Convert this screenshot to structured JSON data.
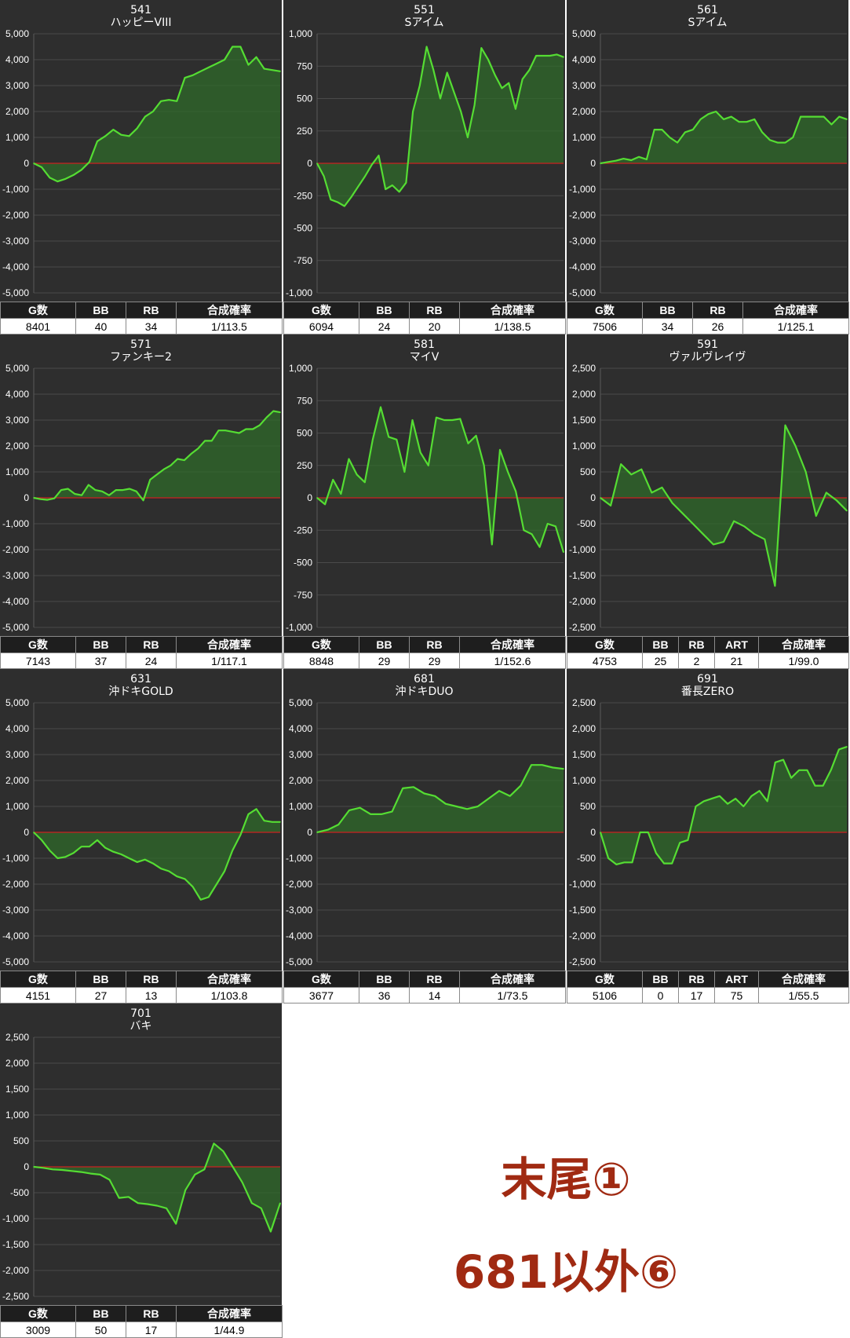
{
  "notes": {
    "line1": "末尾①",
    "line2": "681以外⑥"
  },
  "colors": {
    "panel_bg": "#2e2e2e",
    "line": "#55dd33",
    "fill": "#2f6a2a",
    "zero_line": "#cc2222",
    "note_text": "#a02a12"
  },
  "chart_data": [
    {
      "type": "area",
      "machine_no": "541",
      "title": "ハッピーVIII",
      "ylim": [
        -5000,
        5000
      ],
      "yticks": [
        "5,000",
        "4,000",
        "3,000",
        "2,000",
        "1,000",
        "0",
        "-1,000",
        "-2,000",
        "-3,000",
        "-4,000",
        "-5,000"
      ],
      "values": [
        0,
        -150,
        -550,
        -700,
        -600,
        -450,
        -250,
        50,
        850,
        1050,
        1300,
        1100,
        1050,
        1350,
        1800,
        2000,
        2400,
        2450,
        2400,
        3300,
        3400,
        3550,
        3700,
        3850,
        4000,
        4500,
        4500,
        3800,
        4100,
        3650,
        3600,
        3550
      ],
      "stats": {
        "headers": [
          "G数",
          "BB",
          "RB",
          "合成確率"
        ],
        "values": [
          "8401",
          "40",
          "34",
          "1/113.5"
        ]
      }
    },
    {
      "type": "area",
      "machine_no": "551",
      "title": "Sアイム",
      "ylim": [
        -1000,
        1000
      ],
      "yticks": [
        "1,000",
        "750",
        "500",
        "250",
        "0",
        "-250",
        "-500",
        "-750",
        "-1,000"
      ],
      "values": [
        0,
        -100,
        -280,
        -300,
        -330,
        -260,
        -180,
        -100,
        -10,
        60,
        -200,
        -170,
        -220,
        -150,
        400,
        600,
        900,
        720,
        500,
        700,
        550,
        400,
        200,
        450,
        890,
        800,
        680,
        580,
        620,
        420,
        650,
        720,
        830,
        830,
        830,
        840,
        820
      ],
      "stats": {
        "headers": [
          "G数",
          "BB",
          "RB",
          "合成確率"
        ],
        "values": [
          "6094",
          "24",
          "20",
          "1/138.5"
        ]
      }
    },
    {
      "type": "area",
      "machine_no": "561",
      "title": "Sアイム",
      "ylim": [
        -5000,
        5000
      ],
      "yticks": [
        "5,000",
        "4,000",
        "3,000",
        "2,000",
        "1,000",
        "0",
        "-1,000",
        "-2,000",
        "-3,000",
        "-4,000",
        "-5,000"
      ],
      "values": [
        0,
        50,
        100,
        180,
        120,
        250,
        150,
        1300,
        1300,
        1000,
        800,
        1200,
        1300,
        1700,
        1900,
        2000,
        1700,
        1800,
        1600,
        1600,
        1700,
        1200,
        900,
        800,
        800,
        1000,
        1800,
        1800,
        1800,
        1800,
        1500,
        1800,
        1700
      ],
      "stats": {
        "headers": [
          "G数",
          "BB",
          "RB",
          "合成確率"
        ],
        "values": [
          "7506",
          "34",
          "26",
          "1/125.1"
        ]
      }
    },
    {
      "type": "area",
      "machine_no": "571",
      "title": "ファンキー2",
      "ylim": [
        -5000,
        5000
      ],
      "yticks": [
        "5,000",
        "4,000",
        "3,000",
        "2,000",
        "1,000",
        "0",
        "-1,000",
        "-2,000",
        "-3,000",
        "-4,000",
        "-5,000"
      ],
      "values": [
        0,
        -50,
        -80,
        -20,
        300,
        350,
        150,
        100,
        500,
        300,
        250,
        100,
        300,
        300,
        350,
        250,
        -100,
        700,
        900,
        1100,
        1250,
        1500,
        1450,
        1700,
        1900,
        2200,
        2200,
        2600,
        2600,
        2550,
        2500,
        2650,
        2650,
        2800,
        3100,
        3350,
        3300
      ],
      "stats": {
        "headers": [
          "G数",
          "BB",
          "RB",
          "合成確率"
        ],
        "values": [
          "7143",
          "37",
          "24",
          "1/117.1"
        ]
      }
    },
    {
      "type": "area",
      "machine_no": "581",
      "title": "マイV",
      "ylim": [
        -1000,
        1000
      ],
      "yticks": [
        "1,000",
        "750",
        "500",
        "250",
        "0",
        "-250",
        "-500",
        "-750",
        "-1,000"
      ],
      "values": [
        0,
        -50,
        140,
        30,
        300,
        180,
        120,
        450,
        700,
        470,
        450,
        200,
        600,
        350,
        250,
        620,
        600,
        600,
        610,
        420,
        480,
        250,
        -360,
        370,
        200,
        50,
        -250,
        -280,
        -380,
        -200,
        -220,
        -420
      ],
      "stats": {
        "headers": [
          "G数",
          "BB",
          "RB",
          "合成確率"
        ],
        "values": [
          "8848",
          "29",
          "29",
          "1/152.6"
        ]
      }
    },
    {
      "type": "area",
      "machine_no": "591",
      "title": "ヴァルヴレイヴ",
      "ylim": [
        -2500,
        2500
      ],
      "yticks": [
        "2,500",
        "2,000",
        "1,500",
        "1,000",
        "500",
        "0",
        "-500",
        "-1,000",
        "-1,500",
        "-2,000",
        "-2,500"
      ],
      "values": [
        0,
        -150,
        650,
        450,
        550,
        100,
        200,
        -100,
        -300,
        -500,
        -700,
        -900,
        -850,
        -450,
        -550,
        -700,
        -800,
        -1700,
        1400,
        1000,
        500,
        -350,
        100,
        -50,
        -250
      ],
      "stats": {
        "headers": [
          "G数",
          "BB",
          "RB",
          "ART",
          "合成確率"
        ],
        "values": [
          "4753",
          "25",
          "2",
          "21",
          "1/99.0"
        ]
      }
    },
    {
      "type": "area",
      "machine_no": "631",
      "title": "沖ドキGOLD",
      "ylim": [
        -5000,
        5000
      ],
      "yticks": [
        "5,000",
        "4,000",
        "3,000",
        "2,000",
        "1,000",
        "0",
        "-1,000",
        "-2,000",
        "-3,000",
        "-4,000",
        "-5,000"
      ],
      "values": [
        0,
        -300,
        -700,
        -1000,
        -950,
        -800,
        -550,
        -550,
        -300,
        -600,
        -750,
        -850,
        -1000,
        -1150,
        -1050,
        -1200,
        -1400,
        -1500,
        -1700,
        -1800,
        -2100,
        -2600,
        -2500,
        -2000,
        -1500,
        -700,
        -100,
        700,
        900,
        450,
        400,
        400
      ],
      "stats": {
        "headers": [
          "G数",
          "BB",
          "RB",
          "合成確率"
        ],
        "values": [
          "4151",
          "27",
          "13",
          "1/103.8"
        ]
      }
    },
    {
      "type": "area",
      "machine_no": "681",
      "title": "沖ドキDUO",
      "ylim": [
        -5000,
        5000
      ],
      "yticks": [
        "5,000",
        "4,000",
        "3,000",
        "2,000",
        "1,000",
        "0",
        "-1,000",
        "-2,000",
        "-3,000",
        "-4,000",
        "-5,000"
      ],
      "values": [
        0,
        100,
        300,
        850,
        950,
        700,
        700,
        800,
        1700,
        1750,
        1500,
        1400,
        1100,
        1000,
        900,
        1000,
        1300,
        1600,
        1400,
        1800,
        2600,
        2600,
        2500,
        2450
      ],
      "stats": {
        "headers": [
          "G数",
          "BB",
          "RB",
          "合成確率"
        ],
        "values": [
          "3677",
          "36",
          "14",
          "1/73.5"
        ]
      }
    },
    {
      "type": "area",
      "machine_no": "691",
      "title": "番長ZERO",
      "ylim": [
        -2500,
        2500
      ],
      "yticks": [
        "2,500",
        "2,000",
        "1,500",
        "1,000",
        "500",
        "0",
        "-500",
        "-1,000",
        "-1,500",
        "-2,000",
        "-2,500"
      ],
      "values": [
        0,
        -500,
        -620,
        -580,
        -580,
        0,
        0,
        -400,
        -600,
        -600,
        -200,
        -150,
        500,
        600,
        650,
        700,
        550,
        650,
        500,
        700,
        800,
        600,
        1350,
        1400,
        1050,
        1200,
        1200,
        900,
        900,
        1200,
        1600,
        1650
      ],
      "stats": {
        "headers": [
          "G数",
          "BB",
          "RB",
          "ART",
          "合成確率"
        ],
        "values": [
          "5106",
          "0",
          "17",
          "75",
          "1/55.5"
        ]
      }
    },
    {
      "type": "area",
      "machine_no": "701",
      "title": "バキ",
      "ylim": [
        -2500,
        2500
      ],
      "yticks": [
        "2,500",
        "2,000",
        "1,500",
        "1,000",
        "500",
        "0",
        "-500",
        "-1,000",
        "-1,500",
        "-2,000",
        "-2,500"
      ],
      "values": [
        0,
        -20,
        -50,
        -60,
        -80,
        -100,
        -130,
        -150,
        -250,
        -600,
        -580,
        -700,
        -720,
        -750,
        -800,
        -1100,
        -450,
        -150,
        -50,
        450,
        300,
        0,
        -300,
        -700,
        -800,
        -1250,
        -700
      ],
      "stats": {
        "headers": [
          "G数",
          "BB",
          "RB",
          "合成確率"
        ],
        "values": [
          "3009",
          "50",
          "17",
          "1/44.9"
        ]
      }
    }
  ]
}
